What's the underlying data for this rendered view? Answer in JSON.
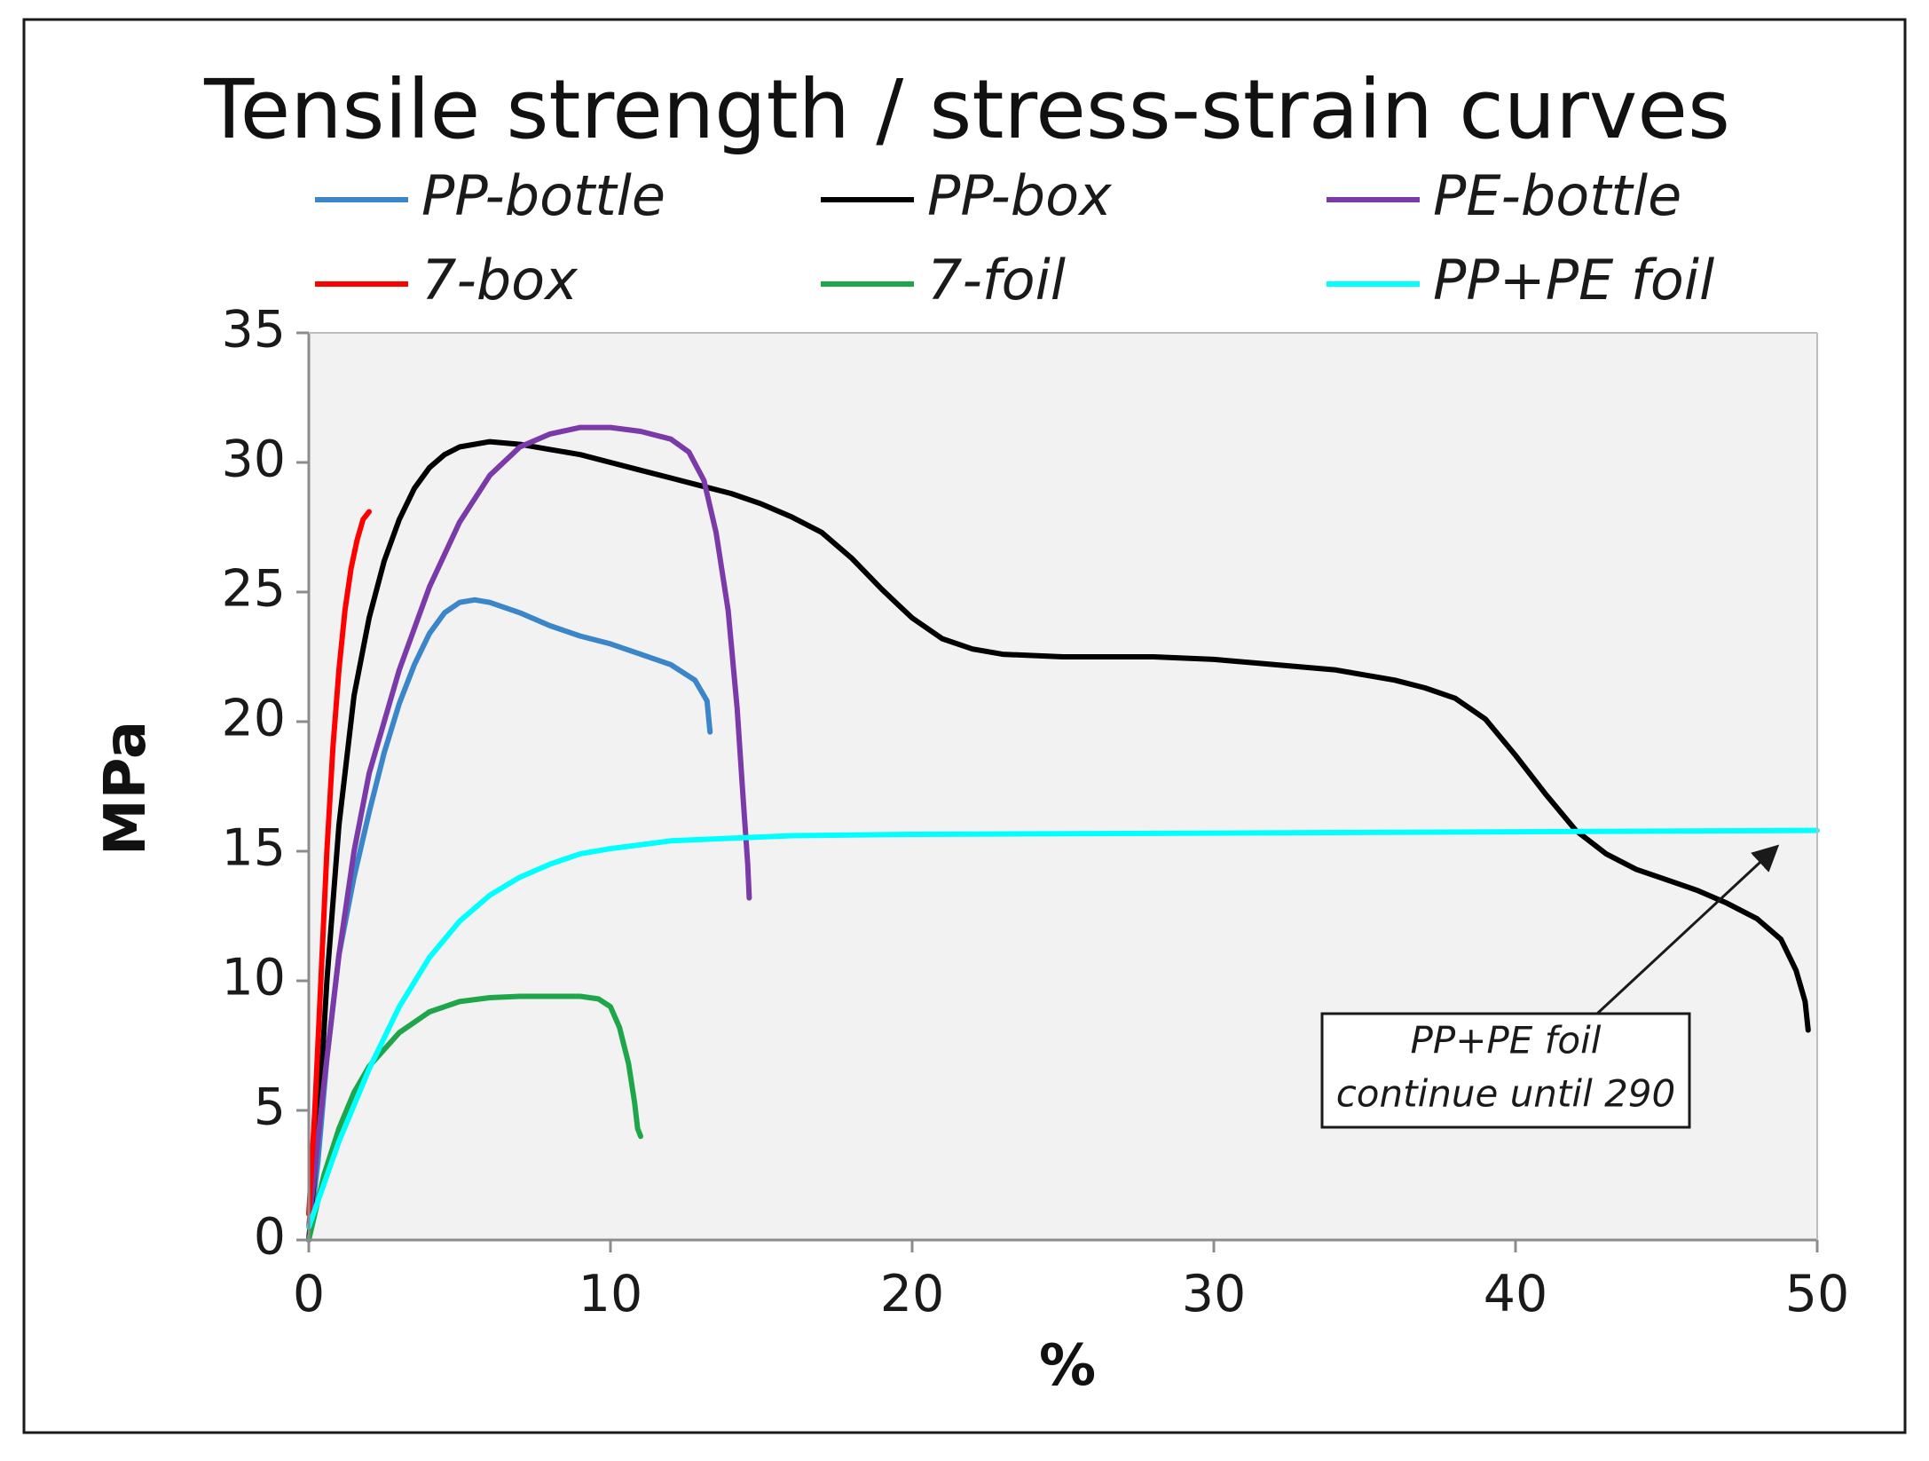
{
  "chart_data": {
    "type": "line",
    "title": "Tensile strength / stress-strain curves",
    "xlabel": "%",
    "ylabel": "MPa",
    "xlim": [
      0,
      50
    ],
    "ylim": [
      0,
      35
    ],
    "xticks": [
      0,
      10,
      20,
      30,
      40,
      50
    ],
    "yticks": [
      0,
      5,
      10,
      15,
      20,
      25,
      30,
      35
    ],
    "grid": false,
    "plot_background": "#f2f2f2",
    "legend_position": "top",
    "series": [
      {
        "name": "PP-bottle",
        "color": "#3a86c8",
        "points": [
          [
            0,
            0
          ],
          [
            0.3,
            3
          ],
          [
            0.6,
            7
          ],
          [
            1,
            11
          ],
          [
            1.5,
            14
          ],
          [
            2,
            16.5
          ],
          [
            2.5,
            18.8
          ],
          [
            3,
            20.7
          ],
          [
            3.5,
            22.2
          ],
          [
            4,
            23.4
          ],
          [
            4.5,
            24.2
          ],
          [
            5,
            24.6
          ],
          [
            5.5,
            24.7
          ],
          [
            6,
            24.6
          ],
          [
            7,
            24.2
          ],
          [
            8,
            23.7
          ],
          [
            9,
            23.3
          ],
          [
            10,
            23
          ],
          [
            11,
            22.6
          ],
          [
            12,
            22.2
          ],
          [
            12.8,
            21.6
          ],
          [
            13.2,
            20.8
          ],
          [
            13.3,
            19.6
          ]
        ]
      },
      {
        "name": "PP-box",
        "color": "#000000",
        "points": [
          [
            0,
            0
          ],
          [
            0.3,
            4
          ],
          [
            0.6,
            10
          ],
          [
            1,
            16
          ],
          [
            1.5,
            21
          ],
          [
            2,
            24
          ],
          [
            2.5,
            26.2
          ],
          [
            3,
            27.8
          ],
          [
            3.5,
            29
          ],
          [
            4,
            29.8
          ],
          [
            4.5,
            30.3
          ],
          [
            5,
            30.6
          ],
          [
            6,
            30.8
          ],
          [
            7,
            30.7
          ],
          [
            8,
            30.5
          ],
          [
            9,
            30.3
          ],
          [
            10,
            30
          ],
          [
            11,
            29.7
          ],
          [
            12,
            29.4
          ],
          [
            13,
            29.1
          ],
          [
            14,
            28.8
          ],
          [
            15,
            28.4
          ],
          [
            16,
            27.9
          ],
          [
            17,
            27.3
          ],
          [
            18,
            26.3
          ],
          [
            19,
            25.1
          ],
          [
            20,
            24
          ],
          [
            21,
            23.2
          ],
          [
            22,
            22.8
          ],
          [
            23,
            22.6
          ],
          [
            25,
            22.5
          ],
          [
            28,
            22.5
          ],
          [
            30,
            22.4
          ],
          [
            32,
            22.2
          ],
          [
            34,
            22
          ],
          [
            36,
            21.6
          ],
          [
            37,
            21.3
          ],
          [
            38,
            20.9
          ],
          [
            39,
            20.1
          ],
          [
            40,
            18.7
          ],
          [
            41,
            17.2
          ],
          [
            42,
            15.8
          ],
          [
            43,
            14.9
          ],
          [
            44,
            14.3
          ],
          [
            45,
            13.9
          ],
          [
            46,
            13.5
          ],
          [
            47,
            13
          ],
          [
            48,
            12.4
          ],
          [
            48.8,
            11.6
          ],
          [
            49.3,
            10.4
          ],
          [
            49.6,
            9.2
          ],
          [
            49.7,
            8.1
          ]
        ]
      },
      {
        "name": "PE-bottle",
        "color": "#7a3aa8",
        "points": [
          [
            0,
            0.5
          ],
          [
            0.5,
            6
          ],
          [
            1,
            11
          ],
          [
            1.5,
            15
          ],
          [
            2,
            18
          ],
          [
            3,
            22
          ],
          [
            4,
            25.2
          ],
          [
            5,
            27.7
          ],
          [
            6,
            29.5
          ],
          [
            7,
            30.6
          ],
          [
            8,
            31.1
          ],
          [
            9,
            31.35
          ],
          [
            10,
            31.35
          ],
          [
            11,
            31.2
          ],
          [
            12,
            30.9
          ],
          [
            12.6,
            30.4
          ],
          [
            13.1,
            29.3
          ],
          [
            13.5,
            27.3
          ],
          [
            13.9,
            24.3
          ],
          [
            14.2,
            20.5
          ],
          [
            14.4,
            17
          ],
          [
            14.55,
            14.5
          ],
          [
            14.6,
            13.2
          ]
        ]
      },
      {
        "name": "7-box",
        "color": "#ff0000",
        "points": [
          [
            0,
            1
          ],
          [
            0.2,
            5
          ],
          [
            0.4,
            10
          ],
          [
            0.6,
            15
          ],
          [
            0.8,
            19
          ],
          [
            1,
            22
          ],
          [
            1.2,
            24.3
          ],
          [
            1.4,
            25.9
          ],
          [
            1.6,
            27
          ],
          [
            1.8,
            27.8
          ],
          [
            2,
            28.1
          ]
        ]
      },
      {
        "name": "7-foil",
        "color": "#1fa64a",
        "points": [
          [
            0,
            0
          ],
          [
            0.5,
            2.5
          ],
          [
            1,
            4.3
          ],
          [
            1.5,
            5.7
          ],
          [
            2,
            6.7
          ],
          [
            3,
            8
          ],
          [
            4,
            8.8
          ],
          [
            5,
            9.2
          ],
          [
            6,
            9.35
          ],
          [
            7,
            9.4
          ],
          [
            8,
            9.4
          ],
          [
            9,
            9.4
          ],
          [
            9.6,
            9.3
          ],
          [
            10,
            9
          ],
          [
            10.3,
            8.2
          ],
          [
            10.6,
            6.8
          ],
          [
            10.8,
            5.3
          ],
          [
            10.9,
            4.3
          ],
          [
            11,
            4
          ]
        ]
      },
      {
        "name": "PP+PE foil",
        "color": "#00ffff",
        "points": [
          [
            0,
            0.5
          ],
          [
            1,
            3.8
          ],
          [
            2,
            6.6
          ],
          [
            3,
            9
          ],
          [
            4,
            10.9
          ],
          [
            5,
            12.3
          ],
          [
            6,
            13.3
          ],
          [
            7,
            14
          ],
          [
            8,
            14.5
          ],
          [
            9,
            14.9
          ],
          [
            10,
            15.1
          ],
          [
            12,
            15.4
          ],
          [
            14,
            15.5
          ],
          [
            16,
            15.6
          ],
          [
            20,
            15.65
          ],
          [
            30,
            15.7
          ],
          [
            40,
            15.75
          ],
          [
            50,
            15.8
          ]
        ]
      }
    ],
    "annotation": {
      "lines": [
        "PP+PE foil",
        "continue until 290"
      ],
      "arrow_target": [
        48.5,
        15.6
      ]
    }
  }
}
